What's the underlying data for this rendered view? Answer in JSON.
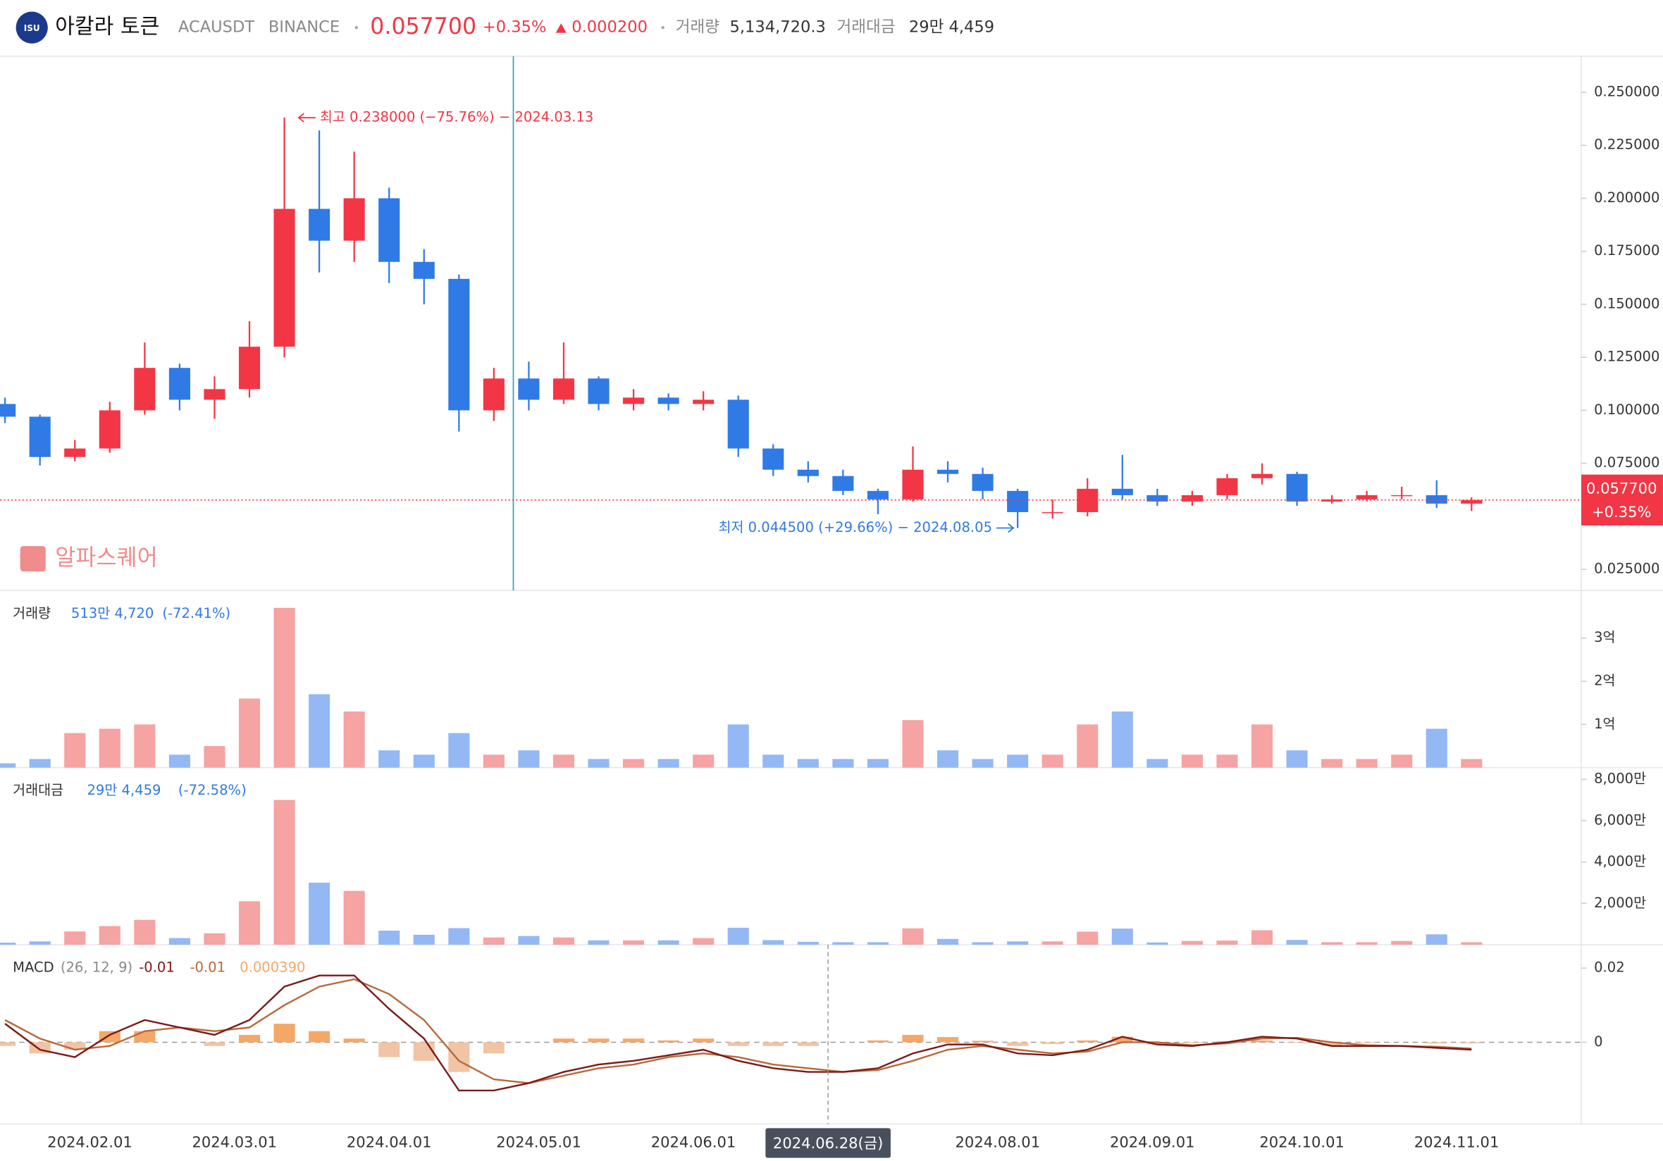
{
  "header": {
    "logo": "ISU",
    "name": "아칼라 토큰",
    "symbol": "ACAUSDT",
    "exchange": "BINANCE",
    "change": "+0.35%",
    "change_abs": "0.000200",
    "volume_label": "거래량",
    "volume": "5,134,720.3",
    "turnover_label": "거래대금",
    "turnover": "29만 4,459"
  },
  "watermark": "알파스퀘어",
  "chart_data": [
    {
      "type": "candlestick",
      "up_color": "#f23645",
      "down_color": "#2f7ae5",
      "grid": false,
      "x": [
        "2024.01.15",
        "2024.01.22",
        "2024.01.29",
        "2024.02.05",
        "2024.02.12",
        "2024.02.19",
        "2024.02.26",
        "2024.03.04",
        "2024.03.11",
        "2024.03.18",
        "2024.03.25",
        "2024.04.01",
        "2024.04.08",
        "2024.04.15",
        "2024.04.22",
        "2024.04.29",
        "2024.05.06",
        "2024.05.13",
        "2024.05.20",
        "2024.05.27",
        "2024.06.03",
        "2024.06.10",
        "2024.06.17",
        "2024.06.24",
        "2024.07.01",
        "2024.07.08",
        "2024.07.15",
        "2024.07.22",
        "2024.07.29",
        "2024.08.05",
        "2024.08.12",
        "2024.08.19",
        "2024.08.26",
        "2024.09.02",
        "2024.09.09",
        "2024.09.16",
        "2024.09.23",
        "2024.09.30",
        "2024.10.07",
        "2024.10.14",
        "2024.10.21",
        "2024.10.28",
        "2024.11.04"
      ],
      "open": [
        0.103,
        0.097,
        0.078,
        0.082,
        0.1,
        0.12,
        0.105,
        0.11,
        0.13,
        0.195,
        0.18,
        0.2,
        0.17,
        0.162,
        0.1,
        0.115,
        0.105,
        0.115,
        0.103,
        0.106,
        0.103,
        0.105,
        0.082,
        0.072,
        0.069,
        0.062,
        0.058,
        0.072,
        0.07,
        0.062,
        0.052,
        0.052,
        0.063,
        0.06,
        0.057,
        0.06,
        0.068,
        0.07,
        0.057,
        0.058,
        0.06,
        0.06,
        0.056
      ],
      "high": [
        0.106,
        0.098,
        0.086,
        0.104,
        0.132,
        0.122,
        0.116,
        0.142,
        0.238,
        0.232,
        0.222,
        0.205,
        0.176,
        0.164,
        0.12,
        0.123,
        0.132,
        0.116,
        0.11,
        0.108,
        0.109,
        0.107,
        0.084,
        0.076,
        0.072,
        0.063,
        0.083,
        0.076,
        0.073,
        0.063,
        0.058,
        0.068,
        0.079,
        0.063,
        0.062,
        0.07,
        0.075,
        0.071,
        0.06,
        0.062,
        0.064,
        0.067,
        0.059
      ],
      "low": [
        0.094,
        0.074,
        0.076,
        0.08,
        0.098,
        0.1,
        0.096,
        0.106,
        0.125,
        0.165,
        0.17,
        0.16,
        0.15,
        0.09,
        0.095,
        0.1,
        0.103,
        0.1,
        0.1,
        0.1,
        0.1,
        0.078,
        0.069,
        0.066,
        0.06,
        0.051,
        0.057,
        0.066,
        0.058,
        0.0445,
        0.049,
        0.05,
        0.058,
        0.055,
        0.055,
        0.058,
        0.065,
        0.055,
        0.056,
        0.057,
        0.058,
        0.054,
        0.0525
      ],
      "close": [
        0.097,
        0.078,
        0.082,
        0.1,
        0.12,
        0.105,
        0.11,
        0.13,
        0.195,
        0.18,
        0.2,
        0.17,
        0.162,
        0.1,
        0.115,
        0.105,
        0.115,
        0.103,
        0.106,
        0.103,
        0.105,
        0.082,
        0.072,
        0.069,
        0.062,
        0.058,
        0.072,
        0.07,
        0.062,
        0.052,
        0.052,
        0.063,
        0.06,
        0.057,
        0.06,
        0.068,
        0.07,
        0.057,
        0.058,
        0.06,
        0.06,
        0.056,
        0.0577
      ],
      "ylim": [
        0.015,
        0.267
      ],
      "yticks": [
        {
          "value": 0.025,
          "label": "0.025000"
        },
        {
          "value": 0.05,
          "label": "0.050000"
        },
        {
          "value": 0.075,
          "label": "0.075000"
        },
        {
          "value": 0.1,
          "label": "0.100000"
        },
        {
          "value": 0.125,
          "label": "0.125000"
        },
        {
          "value": 0.15,
          "label": "0.150000"
        },
        {
          "value": 0.175,
          "label": "0.175000"
        },
        {
          "value": 0.2,
          "label": "0.200000"
        },
        {
          "value": 0.225,
          "label": "0.225000"
        },
        {
          "value": 0.25,
          "label": "0.250000"
        }
      ],
      "xlim": [
        "2024.01.14",
        "2024.11.26"
      ],
      "xticks": [
        "2024.02.01",
        "2024.03.01",
        "2024.04.01",
        "2024.05.01",
        "2024.06.01",
        "2024.08.01",
        "2024.09.01",
        "2024.10.01",
        "2024.11.01"
      ],
      "current_price": {
        "value": 0.0577,
        "label": "0.057700"
      },
      "crosshair": {
        "x": "2024.06.28",
        "label": "2024.06.28(금)"
      },
      "annotations": [
        {
          "text": "최고 0.238000 (−75.76%) − 2024.03.13",
          "x": "2024.03.13",
          "y": 0.238,
          "color": "#f23645"
        },
        {
          "text": "최저 0.044500 (+29.66%) − 2024.08.05",
          "x": "2024.08.05",
          "y": 0.0445,
          "color": "#2f7ae5"
        }
      ]
    },
    {
      "type": "bar",
      "title": "거래량",
      "readout": "513만 4,720",
      "change": "(-72.41%)",
      "up_color": "#f5a3a3",
      "down_color": "#93b8f3",
      "values": [
        10000000,
        20000000,
        80000000,
        90000000,
        100000000,
        30000000,
        50000000,
        160000000,
        370000000,
        170000000,
        130000000,
        40000000,
        30000000,
        80000000,
        30000000,
        40000000,
        30000000,
        20000000,
        20000000,
        20000000,
        30000000,
        100000000,
        30000000,
        20000000,
        20000000,
        20000000,
        110000000,
        40000000,
        20000000,
        30000000,
        30000000,
        100000000,
        130000000,
        20000000,
        30000000,
        30000000,
        100000000,
        40000000,
        20000000,
        20000000,
        30000000,
        90000000,
        20000000
      ],
      "ylim": [
        0,
        410000000
      ],
      "yticks": [
        {
          "value": 100000000,
          "label": "1억"
        },
        {
          "value": 200000000,
          "label": "2억"
        },
        {
          "value": 300000000,
          "label": "3억"
        }
      ]
    },
    {
      "type": "bar",
      "title": "거래대금",
      "readout": "29만 4,459",
      "change": "(-72.58%)",
      "up_color": "#f5a3a3",
      "down_color": "#93b8f3",
      "values": [
        1000000,
        1600000,
        6400000,
        9000000,
        12000000,
        3200000,
        5500000,
        21000000,
        70000000,
        30000000,
        26000000,
        6800000,
        4800000,
        8000000,
        3500000,
        4200000,
        3500000,
        2100000,
        2100000,
        2100000,
        3200000,
        8200000,
        2200000,
        1400000,
        1200000,
        1200000,
        7900000,
        2800000,
        1200000,
        1600000,
        1600000,
        6300000,
        7800000,
        1100000,
        1800000,
        2000000,
        7000000,
        2300000,
        1200000,
        1200000,
        1800000,
        5000000,
        1200000
      ],
      "ylim": [
        0,
        85640000
      ],
      "yticks": [
        {
          "value": 20000000,
          "label": "2,000만"
        },
        {
          "value": 40000000,
          "label": "4,000만"
        },
        {
          "value": 60000000,
          "label": "6,000만"
        },
        {
          "value": 80000000,
          "label": "8,000만"
        }
      ]
    },
    {
      "type": "macd",
      "title": "MACD",
      "params": "(26, 12, 9)",
      "readout": [
        -0.01,
        -0.01,
        {
          "value": 0.00039,
          "label": "0.000390"
        }
      ],
      "series": [
        {
          "color": "#7a1a1a",
          "values": [
            0.005,
            -0.002,
            -0.004,
            0.002,
            0.006,
            0.004,
            0.002,
            0.006,
            0.015,
            0.018,
            0.018,
            0.009,
            0.001,
            -0.013,
            -0.013,
            -0.011,
            -0.008,
            -0.006,
            -0.005,
            -0.0035,
            -0.002,
            -0.005,
            -0.007,
            -0.008,
            -0.008,
            -0.007,
            -0.003,
            -0.0006,
            -0.0006,
            -0.003,
            -0.0035,
            -0.002,
            0.0015,
            -0.0006,
            -0.001,
            0,
            0.0015,
            0.001,
            -0.001,
            -0.001,
            -0.001,
            -0.0015,
            -0.002
          ]
        },
        {
          "color": "#b8693a",
          "values": [
            0.006,
            0.001,
            -0.002,
            -0.001,
            0.003,
            0.004,
            0.003,
            0.004,
            0.01,
            0.015,
            0.017,
            0.013,
            0.006,
            -0.005,
            -0.01,
            -0.011,
            -0.009,
            -0.007,
            -0.006,
            -0.004,
            -0.003,
            -0.004,
            -0.006,
            -0.007,
            -0.008,
            -0.0075,
            -0.005,
            -0.002,
            -0.001,
            -0.002,
            -0.003,
            -0.0025,
            0,
            0,
            -0.0008,
            -0.0003,
            0.001,
            0.0012,
            0,
            -0.0008,
            -0.001,
            -0.0012,
            -0.0017
          ]
        },
        {
          "color": "#f4a868",
          "negative_color": "#f0c4a4",
          "values": [
            -0.001,
            -0.003,
            -0.002,
            0.003,
            0.003,
            0,
            -0.001,
            0.002,
            0.005,
            0.003,
            0.001,
            -0.004,
            -0.005,
            -0.008,
            -0.003,
            0,
            0.001,
            0.001,
            0.001,
            0.0005,
            0.001,
            -0.001,
            -0.001,
            -0.001,
            0,
            0.0005,
            0.002,
            0.0014,
            0.0004,
            -0.001,
            -0.0005,
            0.0005,
            0.0015,
            -0.0006,
            -0.0002,
            0.0003,
            0.0005,
            -0.0002,
            -0.001,
            -0.0002,
            0,
            -0.0003,
            -0.0003
          ]
        }
      ],
      "ylim": [
        -0.022,
        0.0263
      ],
      "yticks": [
        0,
        0.02
      ]
    }
  ]
}
